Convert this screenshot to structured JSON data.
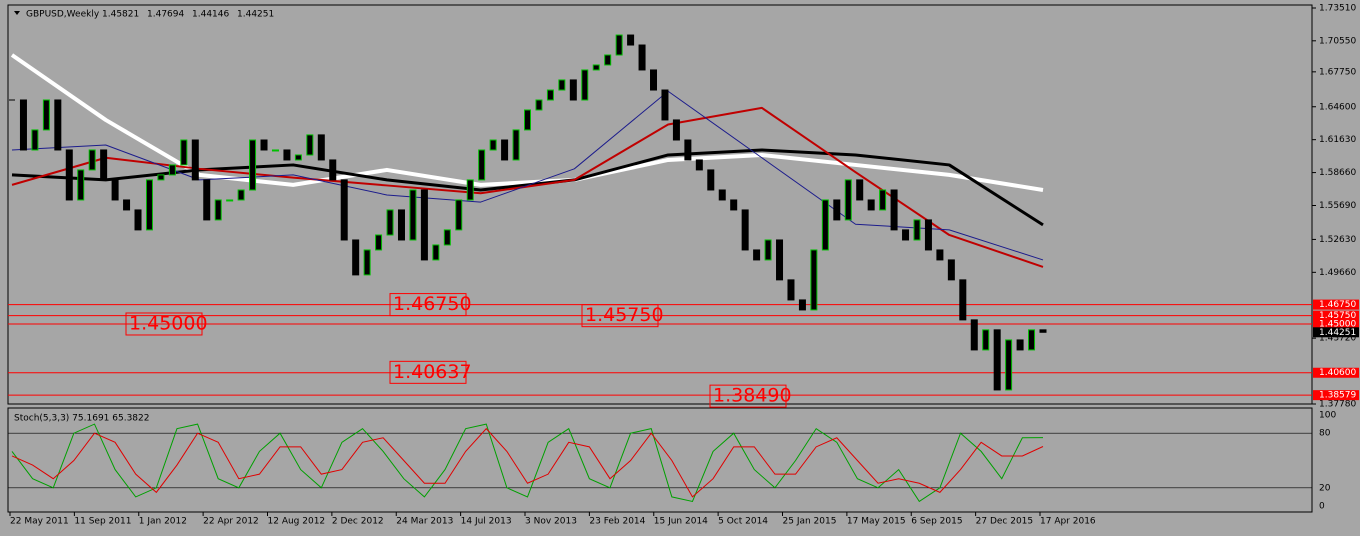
{
  "chart_data": {
    "type": "candlestick",
    "title": "GBPUSD,Weekly",
    "ohlc_header": [
      "1.45821",
      "1.47694",
      "1.44146",
      "1.44251"
    ],
    "closes": [
      1.6521,
      1.607,
      1.6251,
      1.6521,
      1.607,
      1.5619,
      1.589,
      1.607,
      1.58,
      1.5619,
      1.5529,
      1.5349,
      1.58,
      1.5845,
      1.5935,
      1.616,
      1.58,
      1.5439,
      1.5619,
      1.5619,
      1.5709,
      1.616,
      1.607,
      1.607,
      1.598,
      1.6025,
      1.6206,
      1.598,
      1.58,
      1.5258,
      1.4943,
      1.5168,
      1.5303,
      1.5529,
      1.5258,
      1.5709,
      1.5078,
      1.5213,
      1.5349,
      1.5619,
      1.58,
      1.607,
      1.616,
      1.598,
      1.6251,
      1.6431,
      1.6521,
      1.6611,
      1.6702,
      1.6521,
      1.6792,
      1.6837,
      1.6927,
      1.7107,
      1.7017,
      1.6792,
      1.6611,
      1.6341,
      1.616,
      1.598,
      1.589,
      1.5709,
      1.5619,
      1.5529,
      1.5168,
      1.5078,
      1.5258,
      1.4898,
      1.4717,
      1.4627,
      1.5168,
      1.5619,
      1.5439,
      1.58,
      1.5619,
      1.5529,
      1.5709,
      1.5349,
      1.5258,
      1.5439,
      1.5168,
      1.5078,
      1.4898,
      1.4537,
      1.4266,
      1.4447,
      1.3905,
      1.4356,
      1.4266,
      1.4447,
      1.44251
    ],
    "up_color": "#00c000",
    "down_color": "#000000",
    "moving_averages": [
      {
        "color": "#ffffff",
        "width": 4,
        "values": [
          1.6927,
          1.6341,
          1.5845,
          1.5755,
          1.589,
          1.5755,
          1.58,
          1.598,
          1.6025,
          1.5935,
          1.5845,
          1.5709
        ]
      },
      {
        "color": "#000000",
        "width": 3,
        "values": [
          1.5845,
          1.58,
          1.589,
          1.5935,
          1.58,
          1.5709,
          1.58,
          1.6025,
          1.607,
          1.6025,
          1.5935,
          1.5394
        ]
      },
      {
        "color": "#c00000",
        "width": 2,
        "values": [
          1.5755,
          1.6,
          1.59,
          1.582,
          1.575,
          1.568,
          1.58,
          1.63,
          1.645,
          1.587,
          1.5303,
          1.5015
        ]
      },
      {
        "color": "#1c1c8c",
        "width": 1,
        "values": [
          1.607,
          1.6115,
          1.58,
          1.5845,
          1.5664,
          1.56,
          1.59,
          1.66,
          1.6,
          1.54,
          1.5349,
          1.5078
        ]
      }
    ],
    "ylim": [
      1.3778,
      1.7351
    ],
    "yticks": [
      {
        "value": 1.7351,
        "label": "1.73510"
      },
      {
        "value": 1.7055,
        "label": "1.70550"
      },
      {
        "value": 1.6775,
        "label": "1.67750"
      },
      {
        "value": 1.646,
        "label": "1.64600"
      },
      {
        "value": 1.6163,
        "label": "1.61630"
      },
      {
        "value": 1.5866,
        "label": "1.58660"
      },
      {
        "value": 1.5569,
        "label": "1.55690"
      },
      {
        "value": 1.5263,
        "label": "1.52630"
      },
      {
        "value": 1.4966,
        "label": "1.49660"
      },
      {
        "value": 1.4372,
        "label": "1.43720"
      },
      {
        "value": 1.3778,
        "label": "1.37780"
      }
    ],
    "levels": [
      {
        "value": 1.4675,
        "label": "1.46750"
      },
      {
        "value": 1.4575,
        "label": "1.45750"
      },
      {
        "value": 1.45,
        "label": "1.45000"
      },
      {
        "value": 1.406,
        "label": "1.40600"
      },
      {
        "value": 1.38579,
        "label": "1.38579"
      }
    ],
    "level_color": "#ff0000",
    "current": {
      "value": 1.44251,
      "label": "1.44251"
    },
    "annotations": [
      {
        "value": 1.4675,
        "text": "1.46750"
      },
      {
        "value": 1.4575,
        "text": "1.45750"
      },
      {
        "value": 1.45,
        "text": "1.45000"
      },
      {
        "value": 1.40637,
        "text": "1.40637"
      },
      {
        "value": 1.3849,
        "text": "1.38490"
      }
    ],
    "x_labels": [
      "22 May 2011",
      "11 Sep 2011",
      "1 Jan 2012",
      "22 Apr 2012",
      "12 Aug 2012",
      "2 Dec 2012",
      "24 Mar 2013",
      "14 Jul 2013",
      "3 Nov 2013",
      "23 Feb 2014",
      "15 Jun 2014",
      "5 Oct 2014",
      "25 Jan 2015",
      "17 May 2015",
      "6 Sep 2015",
      "27 Dec 2015",
      "17 Apr 2016"
    ],
    "stochastic": {
      "title": "Stoch(5,3,3) 75.1691 65.3822",
      "ylim": [
        0,
        100
      ],
      "yticks": [
        0,
        20,
        80,
        100
      ],
      "main": {
        "color": "#00a000",
        "values": [
          60,
          30,
          20,
          80,
          90,
          40,
          10,
          20,
          85,
          90,
          30,
          20,
          60,
          80,
          40,
          20,
          70,
          85,
          60,
          30,
          10,
          40,
          85,
          90,
          20,
          10,
          70,
          85,
          30,
          20,
          80,
          85,
          10,
          5,
          60,
          80,
          40,
          20,
          50,
          85,
          70,
          30,
          20,
          40,
          5,
          20,
          80,
          60,
          30,
          75,
          75.1691
        ]
      },
      "signal": {
        "color": "#e00000",
        "values": [
          55,
          45,
          30,
          50,
          80,
          70,
          35,
          15,
          45,
          80,
          70,
          30,
          35,
          65,
          65,
          35,
          40,
          70,
          75,
          50,
          25,
          25,
          60,
          85,
          60,
          25,
          35,
          70,
          65,
          30,
          50,
          80,
          50,
          10,
          30,
          65,
          65,
          35,
          35,
          65,
          75,
          50,
          25,
          30,
          25,
          15,
          40,
          70,
          55,
          55,
          65.3822
        ]
      }
    }
  }
}
